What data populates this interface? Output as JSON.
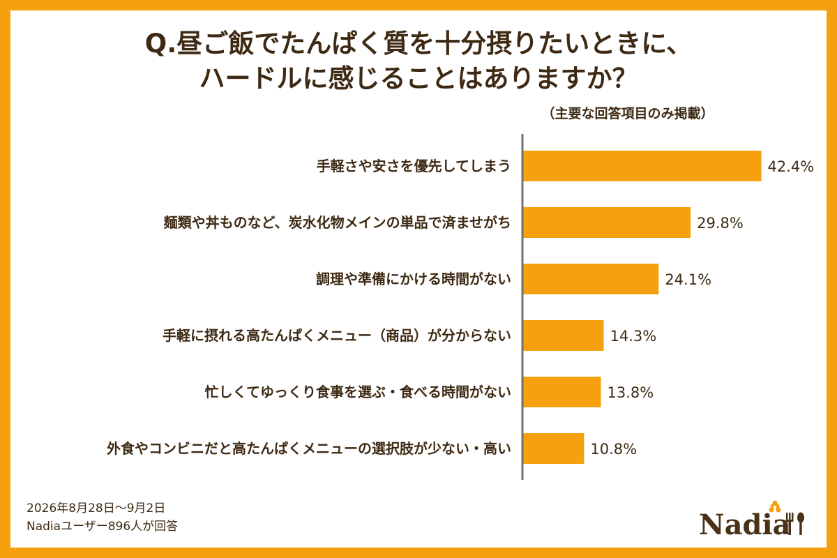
{
  "title": {
    "line1": "Q.昼ご飯でたんぱく質を十分摂りたいときに、",
    "line2": "ハードルに感じることはありますか？"
  },
  "subtitle": "（主要な回答項目のみ掲載）",
  "chart_data": {
    "type": "bar",
    "orientation": "horizontal",
    "categories": [
      "手軽さや安さを優先してしまう",
      "麺類や丼ものなど、炭水化物メインの単品で済ませがち",
      "調理や準備にかける時間がない",
      "手軽に摂れる高たんぱくメニュー（商品）が分からない",
      "忙しくてゆっくり食事を選ぶ・食べる時間がない",
      "外食やコンビニだと高たんぱくメニューの選択肢が少ない・高い"
    ],
    "values": [
      42.4,
      29.8,
      24.1,
      14.3,
      13.8,
      10.8
    ],
    "value_labels": [
      "42.4%",
      "29.8%",
      "24.1%",
      "14.3%",
      "13.8%",
      "10.8%"
    ],
    "xlim": [
      0,
      42.4
    ],
    "bar_color": "#F5A00F",
    "axis_color": "#707070"
  },
  "footer": {
    "date": "2026年8月28日～9月2日",
    "respondents": "Nadiaユーザー896人が回答"
  },
  "brand": {
    "logo_text": "Nadia",
    "logo_color": "#4A3218",
    "accent_color": "#F5A00F",
    "background_color": "#F5A00F"
  }
}
